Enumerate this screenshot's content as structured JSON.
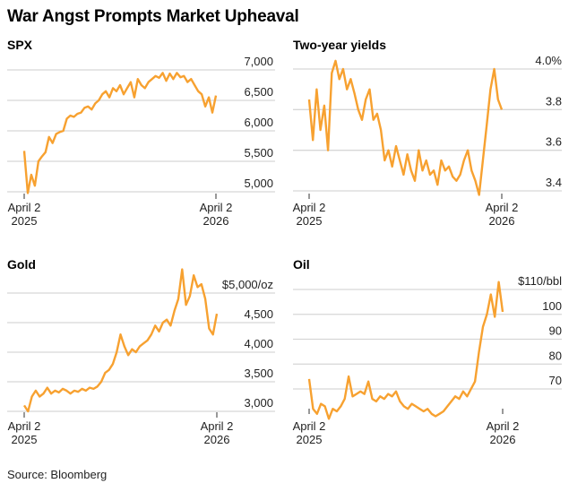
{
  "title": "War Angst Prompts Market Upheaval",
  "source": "Source: Bloomberg",
  "colors": {
    "line": "#f7a130",
    "grid": "#d6d6d6",
    "tick": "#555555"
  },
  "chart_data": [
    {
      "type": "line",
      "title": "SPX",
      "x_ticks": [
        {
          "line1": "April 2",
          "line2": "2025"
        },
        {
          "line1": "April 2",
          "line2": "2026"
        }
      ],
      "y_ticks": [
        {
          "value": 7000,
          "label": "7,000"
        },
        {
          "value": 6500,
          "label": "6,500"
        },
        {
          "value": 6000,
          "label": "6,000"
        },
        {
          "value": 5500,
          "label": "5,500"
        },
        {
          "value": 5000,
          "label": "5,000"
        }
      ],
      "ylim": [
        5000,
        7000
      ],
      "x_unit": "weeks since April 2 2025",
      "values": [
        5670,
        4980,
        5280,
        5100,
        5500,
        5580,
        5650,
        5900,
        5800,
        5950,
        5980,
        6000,
        6200,
        6250,
        6230,
        6280,
        6300,
        6380,
        6400,
        6350,
        6450,
        6500,
        6600,
        6650,
        6550,
        6700,
        6650,
        6750,
        6600,
        6700,
        6800,
        6550,
        6850,
        6750,
        6700,
        6800,
        6850,
        6900,
        6870,
        6950,
        6820,
        6940,
        6850,
        6950,
        6880,
        6900,
        6800,
        6850,
        6750,
        6650,
        6600,
        6400,
        6550,
        6300,
        6580
      ]
    },
    {
      "type": "line",
      "title": "Two-year yields",
      "x_ticks": [
        {
          "line1": "April 2",
          "line2": "2025"
        },
        {
          "line1": "April 2",
          "line2": "2026"
        }
      ],
      "y_ticks": [
        {
          "value": 4.0,
          "label": "4.0%"
        },
        {
          "value": 3.8,
          "label": "3.8"
        },
        {
          "value": 3.6,
          "label": "3.6"
        },
        {
          "value": 3.4,
          "label": "3.4"
        }
      ],
      "ylim": [
        3.4,
        4.0
      ],
      "x_unit": "weeks since April 2 2025",
      "values": [
        3.85,
        3.65,
        3.9,
        3.7,
        3.82,
        3.6,
        3.98,
        4.04,
        3.95,
        4.0,
        3.9,
        3.95,
        3.88,
        3.8,
        3.75,
        3.85,
        3.9,
        3.75,
        3.78,
        3.7,
        3.55,
        3.6,
        3.52,
        3.62,
        3.55,
        3.48,
        3.58,
        3.5,
        3.45,
        3.6,
        3.5,
        3.55,
        3.48,
        3.5,
        3.43,
        3.55,
        3.5,
        3.52,
        3.47,
        3.45,
        3.48,
        3.55,
        3.6,
        3.5,
        3.45,
        3.38,
        3.55,
        3.72,
        3.9,
        4.0,
        3.85,
        3.8
      ]
    },
    {
      "type": "line",
      "title": "Gold",
      "x_ticks": [
        {
          "line1": "April 2",
          "line2": "2025"
        },
        {
          "line1": "April 2",
          "line2": "2026"
        }
      ],
      "y_ticks": [
        {
          "value": 5000,
          "label": "$5,000/oz"
        },
        {
          "value": 4500,
          "label": "4,500"
        },
        {
          "value": 4000,
          "label": "4,000"
        },
        {
          "value": 3500,
          "label": "3,500"
        },
        {
          "value": 3000,
          "label": "3,000"
        }
      ],
      "ylim": [
        3000,
        5000
      ],
      "x_unit": "weeks since April 2 2025",
      "values": [
        3100,
        3000,
        3250,
        3350,
        3250,
        3300,
        3400,
        3300,
        3350,
        3320,
        3380,
        3350,
        3300,
        3350,
        3330,
        3380,
        3350,
        3400,
        3380,
        3420,
        3500,
        3650,
        3700,
        3800,
        4000,
        4300,
        4100,
        3950,
        4050,
        4000,
        4100,
        4150,
        4200,
        4300,
        4450,
        4350,
        4500,
        4550,
        4450,
        4700,
        4900,
        5400,
        4800,
        4950,
        5300,
        5100,
        5150,
        4900,
        4400,
        4300,
        4650
      ]
    },
    {
      "type": "line",
      "title": "Oil",
      "x_ticks": [
        {
          "line1": "April 2",
          "line2": "2025"
        },
        {
          "line1": "April 2",
          "line2": "2026"
        }
      ],
      "y_ticks": [
        {
          "value": 110,
          "label": "$110/bbl"
        },
        {
          "value": 100,
          "label": "100"
        },
        {
          "value": 90,
          "label": "90"
        },
        {
          "value": 80,
          "label": "80"
        },
        {
          "value": 70,
          "label": "70"
        }
      ],
      "ylim": [
        60,
        110
      ],
      "x_unit": "weeks since April 2 2025",
      "values": [
        74,
        62,
        60,
        64,
        63,
        58,
        62,
        61,
        63,
        66,
        75,
        67,
        68,
        69,
        68,
        73,
        66,
        65,
        67,
        66,
        68,
        67,
        69,
        65,
        63,
        62,
        64,
        63,
        62,
        61,
        62,
        60,
        59,
        60,
        61,
        63,
        65,
        67,
        66,
        69,
        67,
        70,
        73,
        85,
        95,
        100,
        108,
        99,
        113,
        101
      ]
    }
  ]
}
